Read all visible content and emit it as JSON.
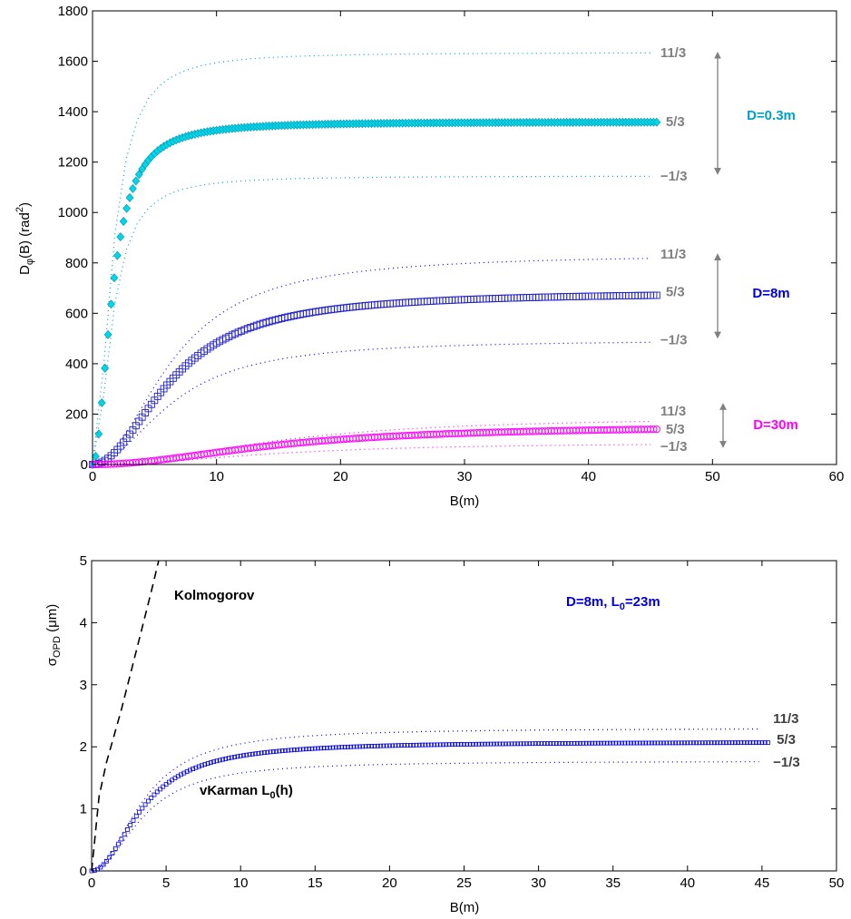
{
  "chart_data": [
    {
      "type": "line",
      "xlabel": "B(m)",
      "ylabel_main": "D",
      "ylabel_sub": "φ",
      "ylabel_rest": "(B) (rad",
      "ylabel_sup": "2",
      "ylabel_end": ")",
      "xlim": [
        0,
        60
      ],
      "ylim": [
        0,
        1800
      ],
      "xticks": [
        "0",
        "10",
        "20",
        "30",
        "40",
        "50",
        "60"
      ],
      "yticks": [
        "0",
        "200",
        "400",
        "600",
        "800",
        "1000",
        "1200",
        "1400",
        "1600",
        "1800"
      ],
      "grid": false,
      "groups": [
        {
          "label": "D=0.3m",
          "color": "#00a0c8",
          "marker_color": "#00d8e8",
          "marker": "diamond",
          "half_length_m": 1.6,
          "curves": [
            {
              "name": "11/3",
              "plateau": 1635
            },
            {
              "name": "5/3",
              "plateau": 1360
            },
            {
              "name": "−1/3",
              "plateau": 1145
            }
          ]
        },
        {
          "label": "D=8m",
          "color": "#0000dd",
          "marker_color": "#2020cc",
          "marker": "square",
          "half_length_m": 6.5,
          "curves": [
            {
              "name": "11/3",
              "plateau": 835
            },
            {
              "name": "5/3",
              "plateau": 685
            },
            {
              "name": "−1/3",
              "plateau": 495
            }
          ]
        },
        {
          "label": "D=30m",
          "color": "#ff00ff",
          "marker_color": "#ff00ff",
          "marker": "circle",
          "half_length_m": 15,
          "curves": [
            {
              "name": "11/3",
              "plateau": 190
            },
            {
              "name": "5/3",
              "plateau": 155
            },
            {
              "name": "−1/3",
              "plateau": 88
            }
          ]
        }
      ]
    },
    {
      "type": "line",
      "xlabel": "B(m)",
      "ylabel_main": "σ",
      "ylabel_sub": "OPD",
      "ylabel_rest": " (μm)",
      "xlim": [
        0,
        50
      ],
      "ylim": [
        0,
        5
      ],
      "xticks": [
        "0",
        "5",
        "10",
        "15",
        "20",
        "25",
        "30",
        "35",
        "40",
        "45",
        "50"
      ],
      "yticks": [
        "0",
        "1",
        "2",
        "3",
        "4",
        "5"
      ],
      "grid": false,
      "annotation_main": "D=8m, L",
      "annotation_sub": "0",
      "annotation_rest": "=23m",
      "annotation_color": "#0000dd",
      "kolmogorov_label": "Kolmogorov",
      "kolmogorov_points": [
        [
          0,
          0
        ],
        [
          0.5,
          1.2
        ],
        [
          1,
          1.75
        ],
        [
          2,
          2.6
        ],
        [
          3,
          3.55
        ],
        [
          4,
          4.5
        ],
        [
          4.5,
          5
        ]
      ],
      "vk_main": "vKarman L",
      "vk_sub": "0",
      "vk_rest": "(h)",
      "half_length_m": 3.5,
      "curves": [
        {
          "name": "11/3",
          "plateau": 2.3
        },
        {
          "name": "5/3",
          "plateau": 2.08
        },
        {
          "name": "−1/3",
          "plateau": 1.77
        }
      ]
    }
  ]
}
